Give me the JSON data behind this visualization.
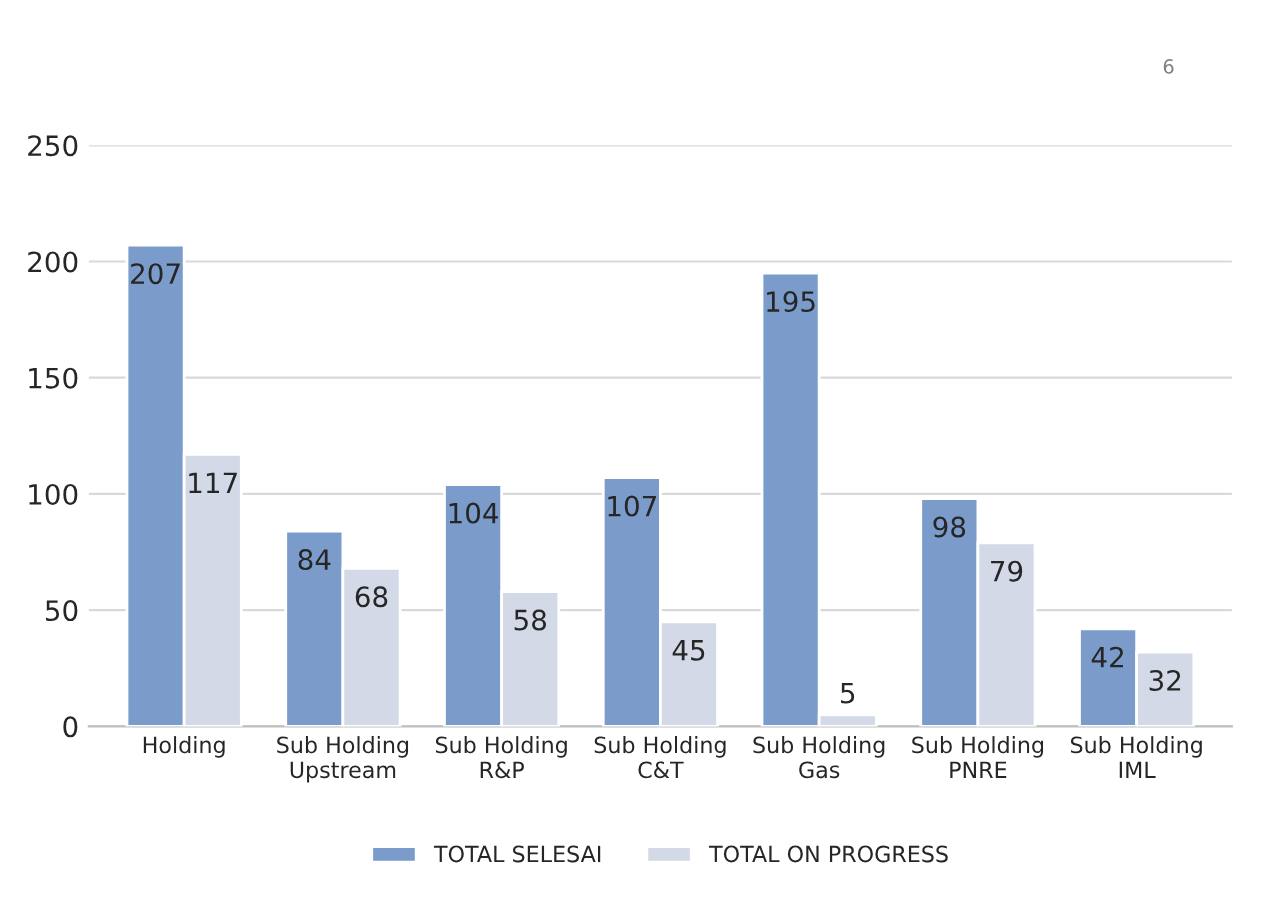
{
  "chart_data": {
    "type": "bar",
    "categories": [
      "Holding",
      "Sub Holding\nUpstream",
      "Sub Holding\nR&P",
      "Sub Holding\nC&T",
      "Sub Holding\nGas",
      "Sub Holding\nPNRE",
      "Sub Holding\nIML"
    ],
    "series": [
      {
        "name": "TOTAL SELESAI",
        "color": "#7b9ccb",
        "values": [
          207,
          84,
          104,
          107,
          195,
          98,
          42
        ]
      },
      {
        "name": "TOTAL ON PROGRESS",
        "color": "#d3d9e7",
        "values": [
          117,
          68,
          58,
          45,
          5,
          79,
          32
        ]
      }
    ],
    "ylim": [
      0,
      250
    ],
    "yticks": [
      0,
      50,
      100,
      150,
      200,
      250
    ],
    "grid": "y",
    "legend": "bottom",
    "data_labels": true,
    "annotations": [
      "6"
    ]
  }
}
